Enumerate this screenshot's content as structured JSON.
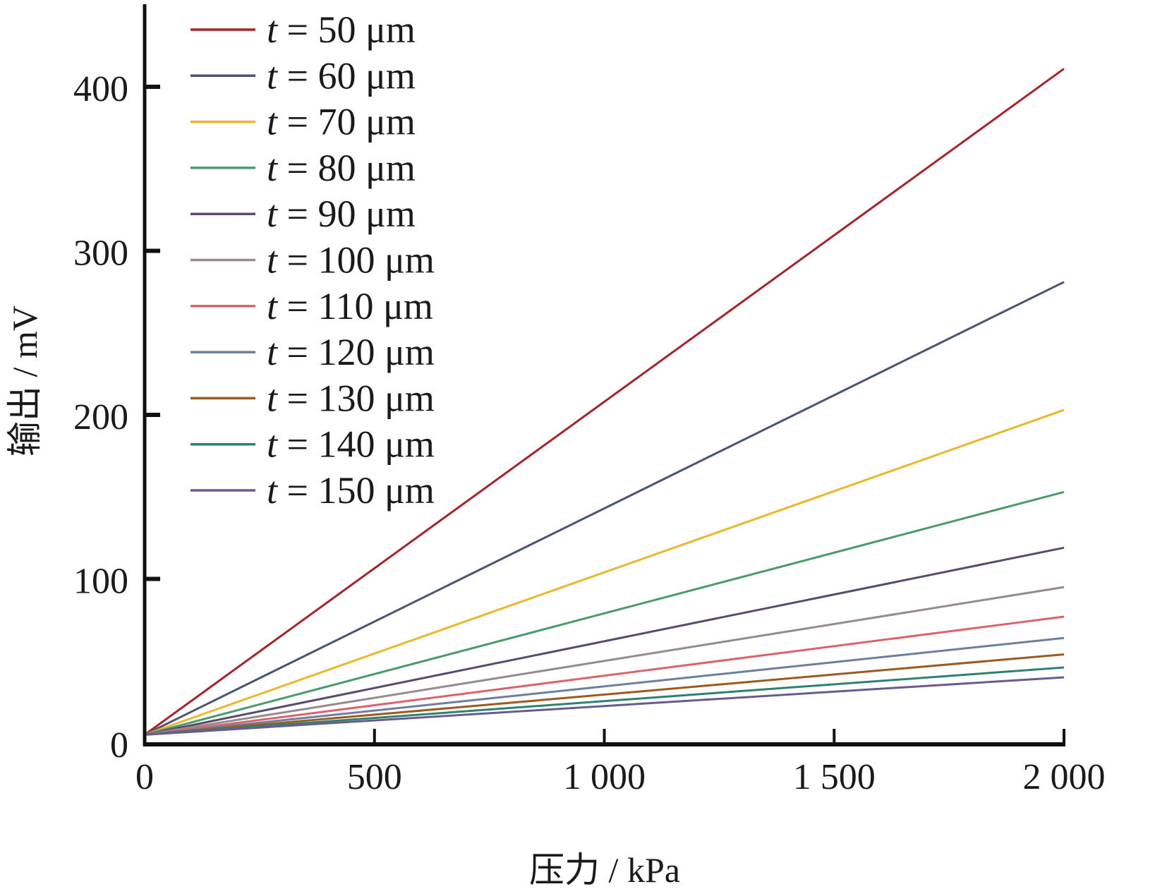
{
  "chart_data": {
    "type": "line",
    "title": "",
    "xlabel": "压力 / kPa",
    "ylabel": "输出 / mV",
    "xlim": [
      0,
      2000
    ],
    "ylim": [
      0,
      450
    ],
    "x_ticks": [
      0,
      500,
      1000,
      1500,
      2000
    ],
    "x_tick_labels": [
      "0",
      "500",
      "1 000",
      "1 500",
      "2 000"
    ],
    "y_ticks": [
      0,
      100,
      200,
      300,
      400
    ],
    "y_tick_labels": [
      "0",
      "100",
      "200",
      "300",
      "400"
    ],
    "grid": false,
    "legend_position": "top-left",
    "x": [
      0,
      2000
    ],
    "series": [
      {
        "name": "t = 50 μm",
        "label_var": "t",
        "label_rest": " = 50 μm",
        "color": "#a3262a",
        "values": [
          5,
          411
        ]
      },
      {
        "name": "t = 60 μm",
        "label_var": "t",
        "label_rest": " = 60 μm",
        "color": "#4a5570",
        "values": [
          5,
          281
        ]
      },
      {
        "name": "t = 70 μm",
        "label_var": "t",
        "label_rest": " = 70 μm",
        "color": "#e8b830",
        "values": [
          5,
          203
        ]
      },
      {
        "name": "t = 80 μm",
        "label_var": "t",
        "label_rest": " = 80 μm",
        "color": "#4a9a6a",
        "values": [
          5,
          153
        ]
      },
      {
        "name": "t = 90 μm",
        "label_var": "t",
        "label_rest": " = 90 μm",
        "color": "#5a4a6e",
        "values": [
          5,
          119
        ]
      },
      {
        "name": "t = 100 μm",
        "label_var": "t",
        "label_rest": " = 100 μm",
        "color": "#958a90",
        "values": [
          5,
          95
        ]
      },
      {
        "name": "t = 110 μm",
        "label_var": "t",
        "label_rest": " = 110 μm",
        "color": "#d9646e",
        "values": [
          5,
          77
        ]
      },
      {
        "name": "t = 120 μm",
        "label_var": "t",
        "label_rest": " = 120 μm",
        "color": "#6d7f9c",
        "values": [
          5,
          64
        ]
      },
      {
        "name": "t = 130 μm",
        "label_var": "t",
        "label_rest": " = 130 μm",
        "color": "#9c5a1e",
        "values": [
          5,
          54
        ]
      },
      {
        "name": "t = 140 μm",
        "label_var": "t",
        "label_rest": " = 140 μm",
        "color": "#2e8272",
        "values": [
          5,
          46
        ]
      },
      {
        "name": "t = 150 μm",
        "label_var": "t",
        "label_rest": " = 150 μm",
        "color": "#6a5a90",
        "values": [
          5,
          40
        ]
      }
    ]
  }
}
